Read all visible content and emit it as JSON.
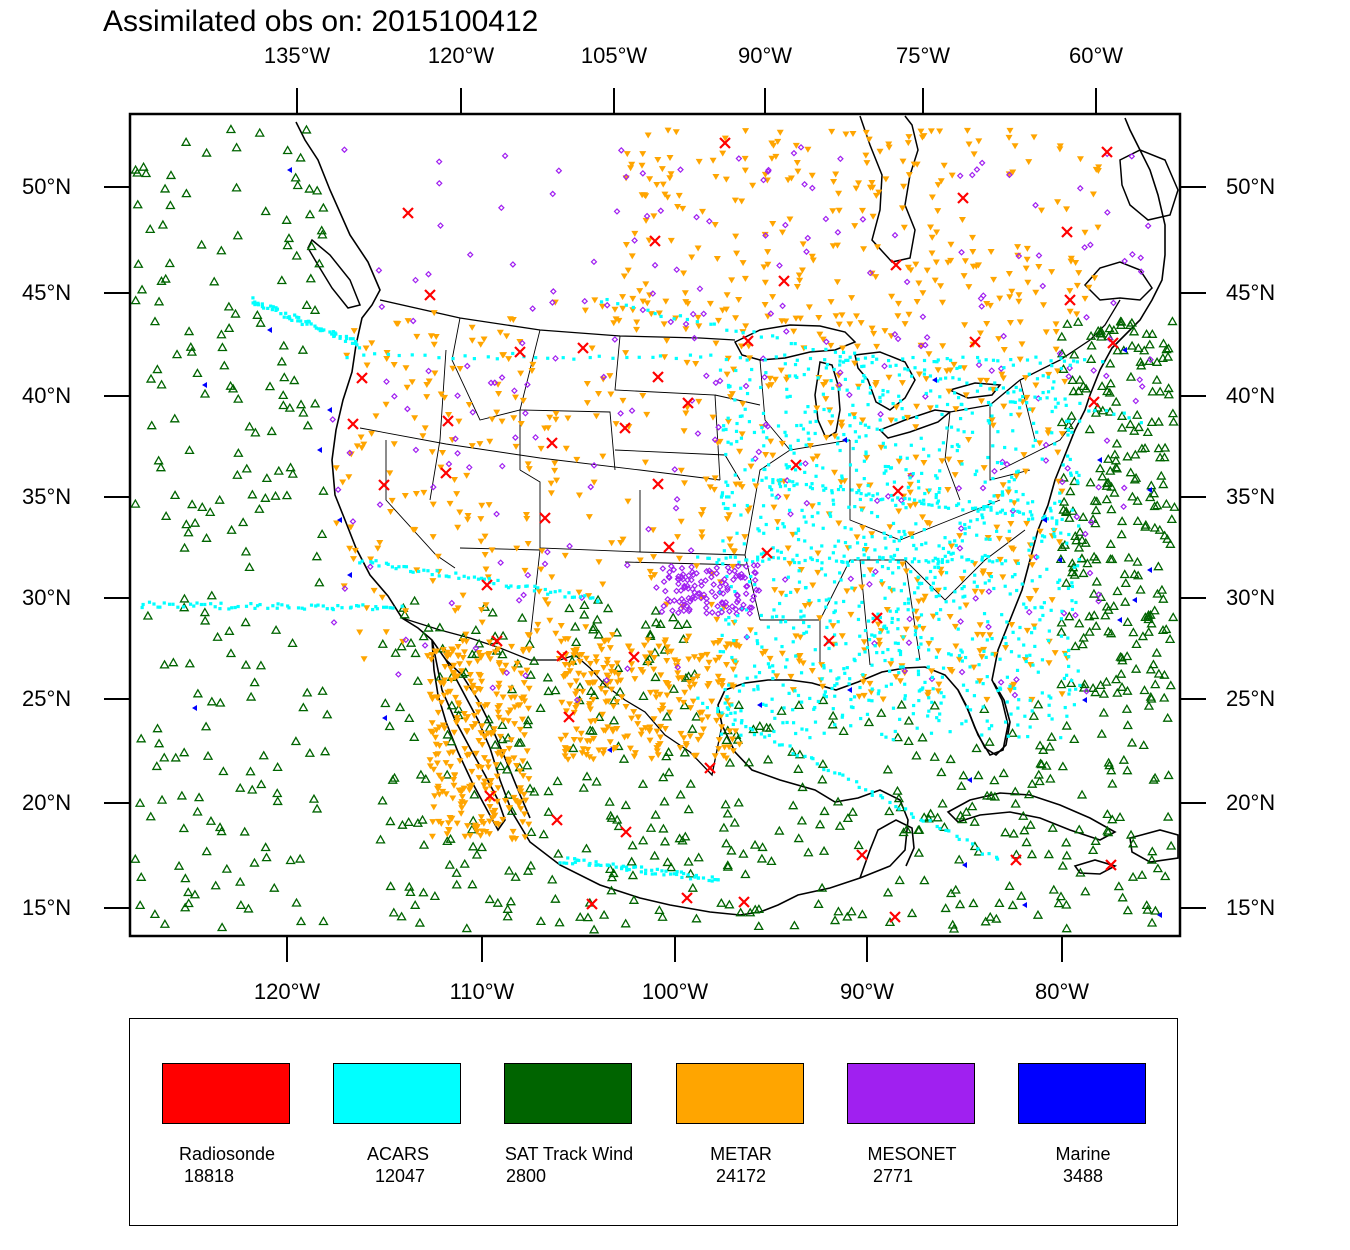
{
  "title": "Assimilated obs on: 2015100412",
  "top_lon_labels": [
    "135°W",
    "120°W",
    "105°W",
    "90°W",
    "75°W",
    "60°W"
  ],
  "bottom_lon_labels": [
    "120°W",
    "110°W",
    "100°W",
    "90°W",
    "80°W"
  ],
  "left_lat_labels": [
    "50°N",
    "45°N",
    "40°N",
    "35°N",
    "30°N",
    "25°N",
    "20°N",
    "15°N"
  ],
  "right_lat_labels": [
    "50°N",
    "45°N",
    "40°N",
    "35°N",
    "30°N",
    "25°N",
    "20°N",
    "15°N"
  ],
  "legend": [
    {
      "name": "Radiosonde",
      "count": "18818",
      "color": "#ff0000",
      "marker": "x-mark"
    },
    {
      "name": "ACARS",
      "count": "12047",
      "color": "#00ffff",
      "marker": "square-dot"
    },
    {
      "name": "SAT Track Wind",
      "count": "2800",
      "color": "#006400",
      "marker": "hollow-triangle-up"
    },
    {
      "name": "METAR",
      "count": "24172",
      "color": "#ffa500",
      "marker": "filled-triangle-down"
    },
    {
      "name": "MESONET",
      "count": "2771",
      "color": "#a020f0",
      "marker": "hollow-diamond"
    },
    {
      "name": "Marine",
      "count": "3488",
      "color": "#0000ff",
      "marker": "filled-triangle-left"
    }
  ]
}
